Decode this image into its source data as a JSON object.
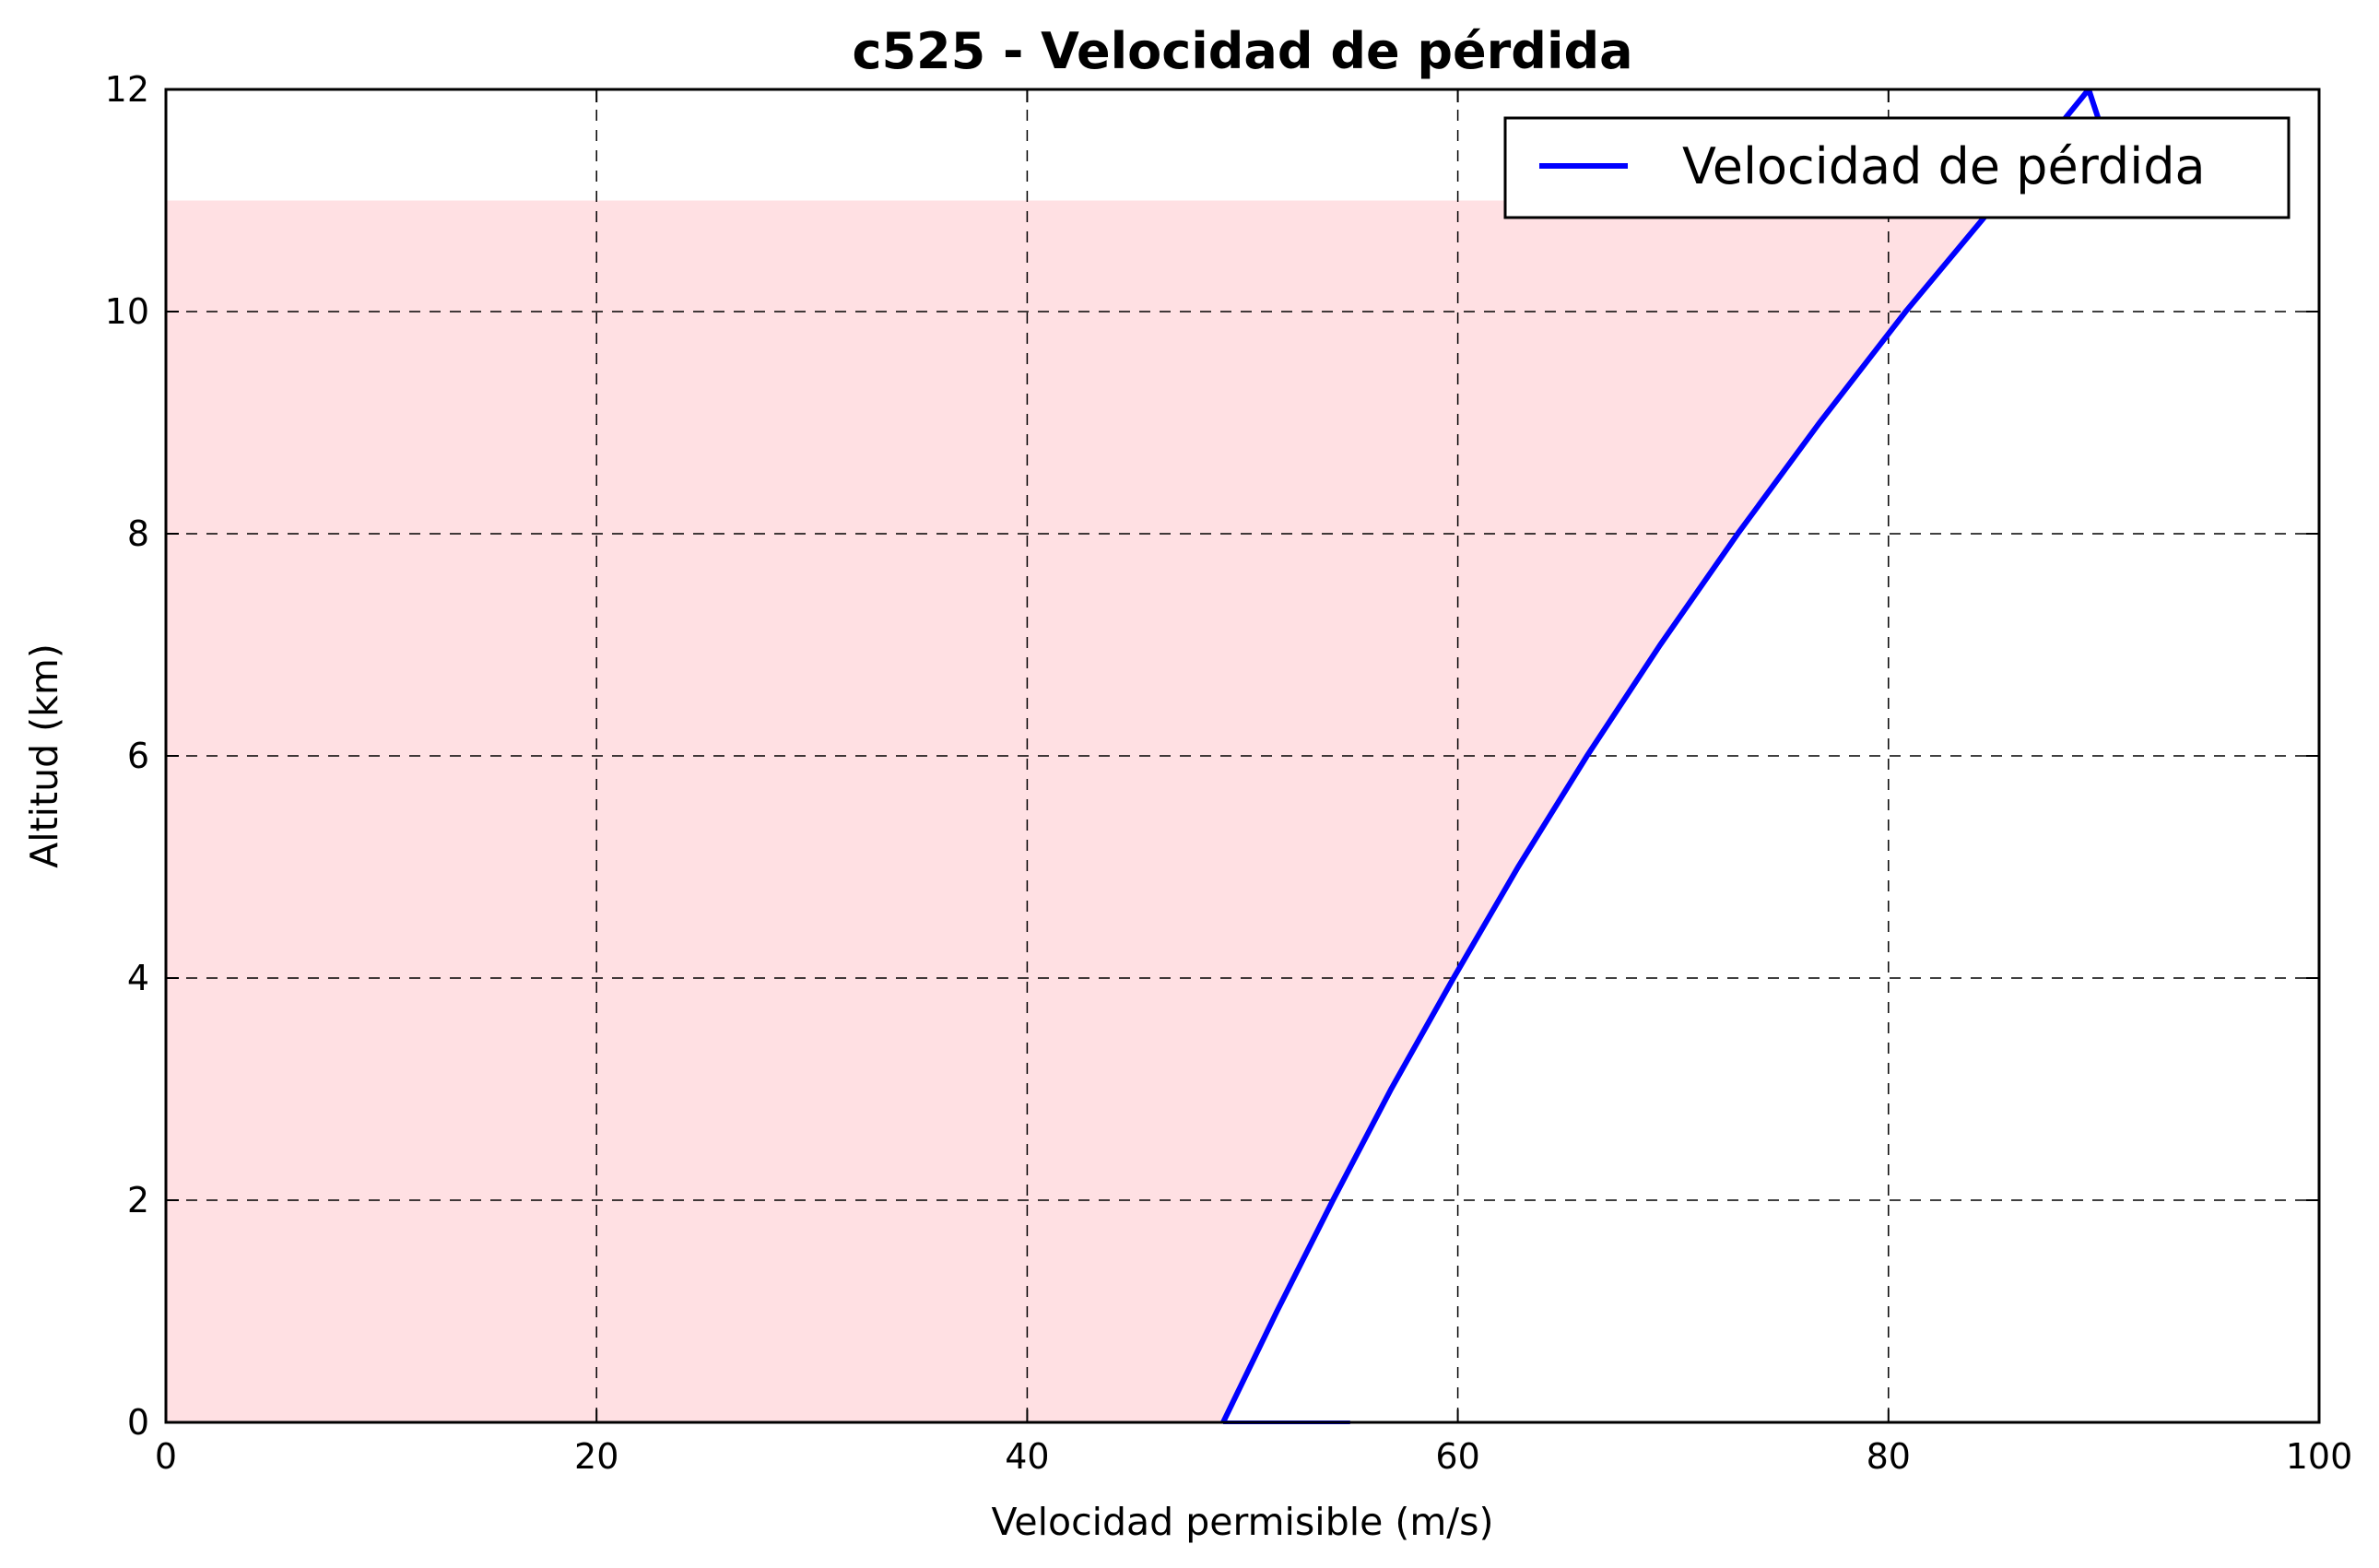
{
  "chart_data": {
    "type": "line",
    "title": "c525 - Velocidad de pérdida",
    "xlabel": "Velocidad permisible (m/s)",
    "ylabel": "Altitud (km)",
    "xlim": [
      0,
      100
    ],
    "ylim": [
      0,
      12
    ],
    "xticks": [
      "0",
      "20",
      "40",
      "60",
      "80",
      "100"
    ],
    "yticks": [
      "0",
      "2",
      "4",
      "6",
      "8",
      "10",
      "12"
    ],
    "grid": true,
    "grid_style": "dashed",
    "legend_position": "top-right",
    "series": [
      {
        "name": "Velocidad de pérdida",
        "color": "#0000ff",
        "x": [
          49.1,
          51.6,
          54.2,
          56.9,
          59.8,
          62.8,
          66.0,
          69.4,
          73.0,
          76.8,
          80.8,
          85.1,
          89.3,
          91.0
        ],
        "y": [
          0,
          1,
          2,
          3,
          4,
          5,
          6,
          7,
          8,
          9,
          10,
          11,
          12,
          11
        ]
      }
    ],
    "baseline_segment": {
      "color": "#0000ff",
      "x": [
        49.1,
        55.0
      ],
      "y": [
        0,
        0
      ]
    },
    "fill_region": {
      "color": "#ffe0e3",
      "description_values": {
        "altitude_max": 11
      }
    }
  }
}
